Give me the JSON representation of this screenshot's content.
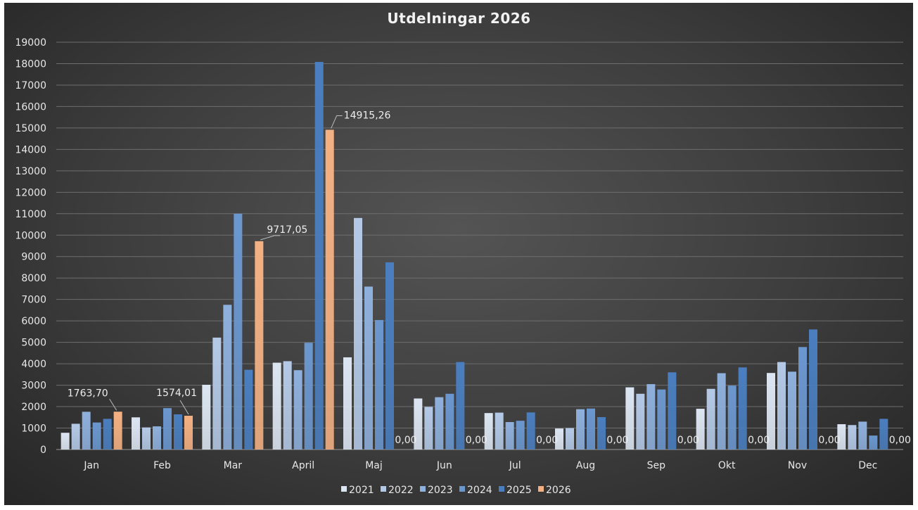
{
  "chart_data": {
    "type": "bar",
    "title": "Utdelningar 2026",
    "xlabel": "",
    "ylabel": "",
    "ylim": [
      0,
      19000
    ],
    "yticks": [
      0,
      1000,
      2000,
      3000,
      4000,
      5000,
      6000,
      7000,
      8000,
      9000,
      10000,
      11000,
      12000,
      13000,
      14000,
      15000,
      16000,
      17000,
      18000,
      19000
    ],
    "grid": true,
    "legend_position": "bottom",
    "categories": [
      "Jan",
      "Feb",
      "Mar",
      "April",
      "Maj",
      "Jun",
      "Jul",
      "Aug",
      "Sep",
      "Okt",
      "Nov",
      "Dec"
    ],
    "series": [
      {
        "name": "2021",
        "color": "#dce6f2",
        "values": [
          780,
          1500,
          3020,
          4050,
          4300,
          2380,
          1700,
          980,
          2900,
          1900,
          3570,
          1180
        ]
      },
      {
        "name": "2022",
        "color": "#b4c9e6",
        "values": [
          1200,
          1030,
          5220,
          4120,
          10800,
          1990,
          1720,
          1000,
          2600,
          2830,
          4080,
          1140
        ]
      },
      {
        "name": "2023",
        "color": "#8eb0dc",
        "values": [
          1760,
          1080,
          6750,
          3700,
          7600,
          2440,
          1280,
          1880,
          3050,
          3560,
          3630,
          1300
        ]
      },
      {
        "name": "2024",
        "color": "#6b97cf",
        "values": [
          1260,
          1930,
          11000,
          4980,
          6040,
          2600,
          1340,
          1910,
          2800,
          2980,
          4780,
          650
        ]
      },
      {
        "name": "2025",
        "color": "#4a7ebf",
        "values": [
          1430,
          1640,
          3720,
          18080,
          8730,
          4080,
          1730,
          1510,
          3600,
          3830,
          5600,
          1430
        ]
      },
      {
        "name": "2026",
        "color": "#f4b183",
        "values": [
          1763.7,
          1574.01,
          9717.05,
          14915.26,
          0,
          0,
          0,
          0,
          0,
          0,
          0,
          0
        ]
      }
    ],
    "data_labels_2026": [
      "1763,70",
      "1574,01",
      "9717,05",
      "14915,26",
      "0,00",
      "0,00",
      "0,00",
      "0,00",
      "0,00",
      "0,00",
      "0,00",
      "0,00"
    ]
  }
}
